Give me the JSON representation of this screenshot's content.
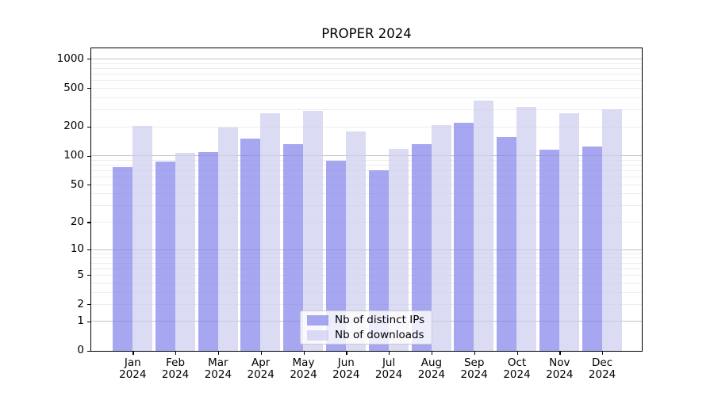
{
  "chart_data": {
    "type": "bar",
    "title": "PROPER 2024",
    "categories": [
      "Jan 2024",
      "Feb 2024",
      "Mar 2024",
      "Apr 2024",
      "May 2024",
      "Jun 2024",
      "Jul 2024",
      "Aug 2024",
      "Sep 2024",
      "Oct 2024",
      "Nov 2024",
      "Dec 2024"
    ],
    "months": [
      "Jan",
      "Feb",
      "Mar",
      "Apr",
      "May",
      "Jun",
      "Jul",
      "Aug",
      "Sep",
      "Oct",
      "Nov",
      "Dec"
    ],
    "year": "2024",
    "series": [
      {
        "name": "Nb of distinct IPs",
        "color": "rgba(133,133,235,0.72)",
        "color_hex_on_white": "#a7a7f0",
        "values": [
          76,
          88,
          110,
          151,
          133,
          89,
          71,
          133,
          220,
          157,
          117,
          125
        ]
      },
      {
        "name": "Nb of downloads",
        "color": "rgba(205,205,240,0.72)",
        "color_hex_on_white": "#dbdbf4",
        "values": [
          205,
          107,
          197,
          275,
          293,
          178,
          118,
          208,
          371,
          320,
          277,
          301
        ]
      }
    ],
    "yscale": "log1p",
    "ylim": [
      0,
      1274
    ],
    "yticks": [
      0,
      1,
      2,
      5,
      10,
      20,
      50,
      100,
      200,
      500,
      1000
    ],
    "grid": {
      "on": true,
      "major_lines": [
        1,
        10,
        100,
        1000
      ],
      "minor_steps": "2-9 per decade",
      "major_color": "#c3c3c3",
      "minor_color": "#ededed"
    },
    "legend": {
      "position": "lower center",
      "entries": [
        "Nb of distinct IPs",
        "Nb of downloads"
      ]
    },
    "xlabel": "",
    "ylabel": ""
  }
}
